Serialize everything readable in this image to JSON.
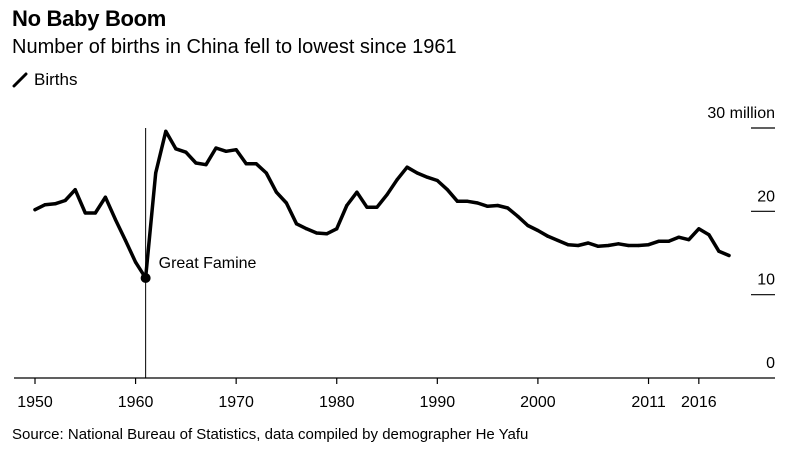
{
  "header": {
    "title": "No Baby Boom",
    "subtitle": "Number of births in China fell to lowest since 1961"
  },
  "source": "Source: National Bureau of Statistics, data compiled by demographer He Yafu",
  "colors": {
    "line": "#000000",
    "axis": "#000000",
    "background": "#ffffff"
  },
  "chart_data": {
    "type": "line",
    "title": "No Baby Boom",
    "subtitle": "Number of births in China fell to lowest since 1961",
    "xlabel": "",
    "ylabel": "",
    "xlim": [
      1949,
      2023
    ],
    "ylim": [
      0,
      30
    ],
    "x_ticks": [
      1950,
      1960,
      1970,
      1980,
      1990,
      2000,
      2011,
      2016
    ],
    "y_ticks": [
      {
        "value": 30,
        "label": "30 million"
      },
      {
        "value": 20,
        "label": "20"
      },
      {
        "value": 10,
        "label": "10"
      },
      {
        "value": 0,
        "label": "0"
      }
    ],
    "legend": {
      "label": "Births",
      "placement": "top-left"
    },
    "annotation": {
      "label": "Great Famine",
      "x": 1961,
      "y": 12.0
    },
    "series": [
      {
        "name": "Births",
        "unit": "million",
        "x": [
          1950,
          1951,
          1952,
          1953,
          1954,
          1955,
          1956,
          1957,
          1958,
          1959,
          1960,
          1961,
          1962,
          1963,
          1964,
          1965,
          1966,
          1967,
          1968,
          1969,
          1970,
          1971,
          1972,
          1973,
          1974,
          1975,
          1976,
          1977,
          1978,
          1979,
          1980,
          1981,
          1982,
          1983,
          1984,
          1985,
          1986,
          1987,
          1988,
          1989,
          1990,
          1991,
          1992,
          1993,
          1994,
          1995,
          1996,
          1997,
          1998,
          1999,
          2000,
          2001,
          2002,
          2003,
          2004,
          2005,
          2006,
          2007,
          2008,
          2009,
          2010,
          2011,
          2012,
          2013,
          2014,
          2015,
          2016,
          2017,
          2018,
          2019
        ],
        "values": [
          20.2,
          20.8,
          20.9,
          21.3,
          22.6,
          19.8,
          19.8,
          21.7,
          19.0,
          16.5,
          13.9,
          12.0,
          24.6,
          29.6,
          27.5,
          27.1,
          25.8,
          25.6,
          27.6,
          27.2,
          27.4,
          25.7,
          25.7,
          24.6,
          22.3,
          21.0,
          18.5,
          17.9,
          17.4,
          17.3,
          17.9,
          20.7,
          22.3,
          20.5,
          20.5,
          22.0,
          23.8,
          25.3,
          24.6,
          24.1,
          23.7,
          22.6,
          21.2,
          21.2,
          21.0,
          20.6,
          20.7,
          20.4,
          19.4,
          18.3,
          17.7,
          17.0,
          16.5,
          16.0,
          15.9,
          16.2,
          15.8,
          15.9,
          16.1,
          15.9,
          15.9,
          16.0,
          16.4,
          16.4,
          16.9,
          16.6,
          17.9,
          17.2,
          15.2,
          14.7
        ]
      }
    ]
  }
}
